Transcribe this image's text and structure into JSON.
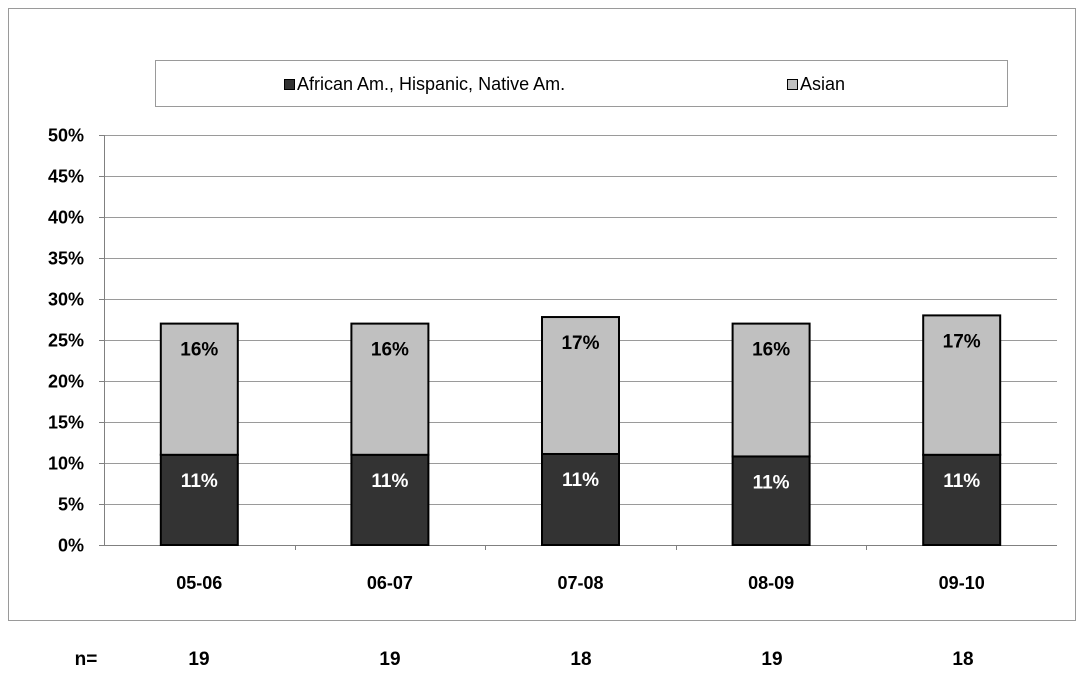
{
  "chart_data": {
    "type": "bar",
    "stacked": true,
    "categories": [
      "05-06",
      "06-07",
      "07-08",
      "08-09",
      "09-10"
    ],
    "series": [
      {
        "name": "African Am., Hispanic, Native Am.",
        "values": [
          11,
          11,
          11.1,
          10.8,
          11
        ],
        "labels": [
          "11%",
          "11%",
          "11%",
          "11%",
          "11%"
        ],
        "color": "#333333",
        "label_color": "#ffffff"
      },
      {
        "name": "Asian",
        "values": [
          16,
          16,
          16.7,
          16.2,
          17
        ],
        "labels": [
          "16%",
          "16%",
          "17%",
          "16%",
          "17%"
        ],
        "color": "#c0c0c0",
        "label_color": "#000000"
      }
    ],
    "ylim": [
      0,
      50
    ],
    "yticks": [
      "0%",
      "5%",
      "10%",
      "15%",
      "20%",
      "25%",
      "30%",
      "35%",
      "40%",
      "45%",
      "50%"
    ],
    "grid": true,
    "legend_position": "top"
  },
  "n_row": {
    "label": "n=",
    "values": [
      "19",
      "19",
      "18",
      "19",
      "18"
    ]
  }
}
